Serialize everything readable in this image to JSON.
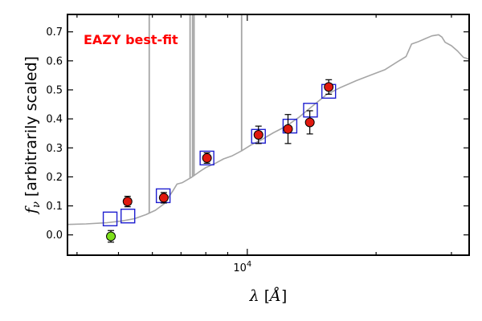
{
  "chart_data": {
    "type": "scatter",
    "annotation": "EAZY best-fit",
    "annotation_color": "#ff0000",
    "xlabel": "λ [Å]",
    "ylabel": "f_ν [arbitrarily scaled]",
    "xscale": "log",
    "xlim": [
      3800,
      33000
    ],
    "ylim": [
      -0.07,
      0.76
    ],
    "x_tick_label": "10^4",
    "yticks": [
      0.0,
      0.1,
      0.2,
      0.3,
      0.4,
      0.5,
      0.6,
      0.7
    ],
    "grid": false,
    "colors": {
      "sed": "#a6a6a6",
      "model_box": "#1f1fd0",
      "detected": "#e0190f",
      "upper_limit": "#7ddf1a"
    },
    "observed": [
      {
        "x": 4800,
        "y": -0.005,
        "err": 0.02,
        "color": "#7ddf1a"
      },
      {
        "x": 5250,
        "y": 0.115,
        "err": 0.018,
        "color": "#e0190f"
      },
      {
        "x": 6380,
        "y": 0.128,
        "err": 0.018,
        "color": "#e0190f"
      },
      {
        "x": 8050,
        "y": 0.265,
        "err": 0.018,
        "color": "#e0190f"
      },
      {
        "x": 10620,
        "y": 0.345,
        "err": 0.03,
        "color": "#e0190f"
      },
      {
        "x": 12450,
        "y": 0.365,
        "err": 0.05,
        "color": "#e0190f"
      },
      {
        "x": 14000,
        "y": 0.388,
        "err": 0.04,
        "color": "#e0190f"
      },
      {
        "x": 15500,
        "y": 0.51,
        "err": 0.025,
        "color": "#e0190f"
      }
    ],
    "model_fluxes": [
      {
        "x": 4780,
        "y": 0.055
      },
      {
        "x": 5260,
        "y": 0.065
      },
      {
        "x": 6360,
        "y": 0.135
      },
      {
        "x": 8050,
        "y": 0.265
      },
      {
        "x": 10620,
        "y": 0.34
      },
      {
        "x": 12580,
        "y": 0.375
      },
      {
        "x": 14050,
        "y": 0.43
      },
      {
        "x": 15500,
        "y": 0.495
      }
    ],
    "sed": [
      [
        3800,
        0.036
      ],
      [
        4200,
        0.038
      ],
      [
        4700,
        0.042
      ],
      [
        5100,
        0.048
      ],
      [
        5450,
        0.056
      ],
      [
        5800,
        0.07
      ],
      [
        6100,
        0.085
      ],
      [
        6400,
        0.108
      ],
      [
        6700,
        0.152
      ],
      [
        6850,
        0.175
      ],
      [
        7050,
        0.18
      ],
      [
        7400,
        0.198
      ],
      [
        7700,
        0.216
      ],
      [
        8000,
        0.232
      ],
      [
        8400,
        0.246
      ],
      [
        8800,
        0.262
      ],
      [
        9200,
        0.272
      ],
      [
        9700,
        0.29
      ],
      [
        10200,
        0.31
      ],
      [
        10800,
        0.328
      ],
      [
        11500,
        0.352
      ],
      [
        12300,
        0.374
      ],
      [
        13200,
        0.405
      ],
      [
        14200,
        0.444
      ],
      [
        15300,
        0.483
      ],
      [
        16500,
        0.508
      ],
      [
        18000,
        0.532
      ],
      [
        19500,
        0.552
      ],
      [
        21000,
        0.57
      ],
      [
        22500,
        0.598
      ],
      [
        23500,
        0.615
      ],
      [
        24200,
        0.658
      ],
      [
        25000,
        0.665
      ],
      [
        26000,
        0.676
      ],
      [
        27000,
        0.686
      ],
      [
        28000,
        0.69
      ],
      [
        28500,
        0.682
      ],
      [
        29000,
        0.664
      ],
      [
        30000,
        0.652
      ],
      [
        31000,
        0.634
      ],
      [
        32000,
        0.612
      ],
      [
        33000,
        0.606
      ]
    ],
    "emission_lines": [
      {
        "x": 5900,
        "peak": 0.76
      },
      {
        "x": 7350,
        "peak": 0.76
      },
      {
        "x": 7450,
        "peak": 0.76
      },
      {
        "x": 7510,
        "peak": 0.76
      },
      {
        "x": 9700,
        "peak": 0.76
      }
    ]
  }
}
